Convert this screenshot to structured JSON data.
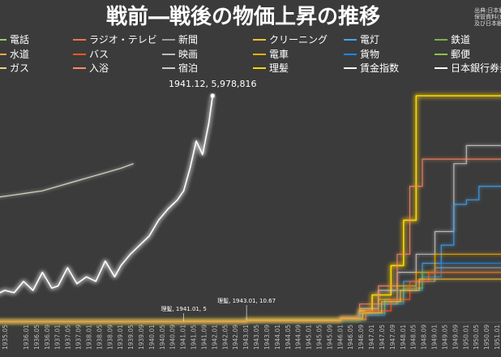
{
  "chart_data": {
    "type": "line",
    "title": "戦前―戦後の物価上昇の推移",
    "source": [
      "出典:日本銀",
      "保管資料(東",
      "及び日本銀"
    ],
    "legend": [
      {
        "name": "電話",
        "color": "#9ccc65"
      },
      {
        "name": "ラジオ・テレビ",
        "color": "#ff7043"
      },
      {
        "name": "新聞",
        "color": "#9e9e9e"
      },
      {
        "name": "クリーニング",
        "color": "#fbc02d"
      },
      {
        "name": "電灯",
        "color": "#42a5f5"
      },
      {
        "name": "鉄道",
        "color": "#7cb342"
      },
      {
        "name": "水道",
        "color": "#ffab40"
      },
      {
        "name": "バス",
        "color": "#ff5722"
      },
      {
        "name": "映画",
        "color": "#bdbdbd"
      },
      {
        "name": "電車",
        "color": "#ffb300"
      },
      {
        "name": "貨物",
        "color": "#1e88e5"
      },
      {
        "name": "郵便",
        "color": "#8bc34a"
      },
      {
        "name": "ガス",
        "color": "#ffcc80"
      },
      {
        "name": "入浴",
        "color": "#ff8a65"
      },
      {
        "name": "宿泊",
        "color": "#cccccc"
      },
      {
        "name": "理髪",
        "color": "#ffd600"
      },
      {
        "name": "賃金指数",
        "color": "#f5f5f5"
      },
      {
        "name": "日本銀行券発",
        "color": "#ffffff"
      }
    ],
    "x_ticks": [
      "1935.05",
      "1936.01",
      "1936.05",
      "1936.09",
      "1937.01",
      "1937.05",
      "1937.09",
      "1938.01",
      "1938.05",
      "1938.09",
      "1939.01",
      "1939.05",
      "1939.09",
      "1940.01",
      "1940.05",
      "1940.09",
      "1941.01",
      "1941.05",
      "1941.09",
      "1942.01",
      "1942.05",
      "1942.09",
      "1943.01",
      "1943.05",
      "1943.09",
      "1944.01",
      "1944.05",
      "1944.09",
      "1945.01",
      "1945.05",
      "1945.09",
      "1946.01",
      "1946.05",
      "1946.09",
      "1947.01",
      "1947.05",
      "1947.09",
      "1948.01",
      "1948.05",
      "1948.09",
      "1949.01",
      "1949.05",
      "1949.09",
      "1950.01",
      "1950.05",
      "1950.09",
      "1951.01"
    ],
    "annotations": [
      {
        "text": "1941.12, 5,978,816",
        "x": 1941.92
      },
      {
        "text": "理髪, 1941.01, 5",
        "x": 1941.0
      },
      {
        "text": "理髪, 1943.01, 10.67",
        "x": 1943.0
      }
    ],
    "series": [
      {
        "name": "賃金指数",
        "color": "#eef5e0",
        "x": [
          1935.0,
          1935.5,
          1936.0,
          1936.5,
          1937.0,
          1937.5,
          1938.0,
          1938.5,
          1939.0,
          1939.4
        ],
        "y": [
          55,
          56,
          57,
          58,
          60,
          62,
          64,
          66,
          68,
          70
        ]
      },
      {
        "name": "日本銀行券発",
        "color": "#ffffff",
        "x": [
          1935.0,
          1935.3,
          1935.6,
          1935.9,
          1936.2,
          1936.5,
          1936.8,
          1937.0,
          1937.3,
          1937.6,
          1937.9,
          1938.2,
          1938.5,
          1938.8,
          1939.0,
          1939.3,
          1939.6,
          1939.9,
          1940.2,
          1940.5,
          1940.8,
          1941.0,
          1941.2,
          1941.4,
          1941.6,
          1941.8,
          1941.92
        ],
        "y": [
          12,
          14,
          13,
          18,
          14,
          22,
          15,
          16,
          24,
          17,
          20,
          18,
          27,
          20,
          25,
          30,
          34,
          38,
          45,
          50,
          54,
          58,
          68,
          80,
          74,
          88,
          100
        ]
      },
      {
        "name": "理髪",
        "color": "#ffd600",
        "x": [
          1935.0,
          1941.0,
          1943.0,
          1946.0,
          1946.6,
          1947.0,
          1947.6,
          1948.0,
          1948.4,
          1949.0,
          1950.0,
          1951.5
        ],
        "y": [
          0.2,
          0.5,
          1.0,
          1.5,
          5,
          12,
          25,
          45,
          100,
          100,
          100,
          100
        ]
      },
      {
        "name": "宿泊",
        "color": "#cccccc",
        "x": [
          1935.0,
          1943.0,
          1946.0,
          1946.6,
          1947.2,
          1947.8,
          1948.4,
          1949.0,
          1949.6,
          1950.0,
          1951.5
        ],
        "y": [
          0.3,
          0.8,
          2,
          6,
          14,
          22,
          30,
          40,
          70,
          78,
          78
        ]
      },
      {
        "name": "入浴",
        "color": "#ff8a65",
        "x": [
          1935.0,
          1943.0,
          1946.0,
          1946.6,
          1947.2,
          1947.8,
          1948.2,
          1948.6,
          1949.0,
          1951.5
        ],
        "y": [
          0.3,
          0.8,
          2,
          8,
          16,
          30,
          60,
          72,
          72,
          72
        ]
      },
      {
        "name": "電灯",
        "color": "#42a5f5",
        "x": [
          1935.0,
          1943.0,
          1946.0,
          1946.8,
          1947.4,
          1948.0,
          1948.6,
          1949.2,
          1949.6,
          1950.0,
          1950.4,
          1951.5
        ],
        "y": [
          0.2,
          0.6,
          1,
          4,
          10,
          18,
          26,
          34,
          52,
          54,
          60,
          60
        ]
      },
      {
        "name": "電車",
        "color": "#ffb300",
        "x": [
          1935.0,
          1943.0,
          1946.0,
          1946.6,
          1947.2,
          1947.8,
          1948.4,
          1949.0,
          1951.5
        ],
        "y": [
          0.3,
          0.7,
          1.5,
          5,
          10,
          16,
          22,
          30,
          30
        ]
      },
      {
        "name": "貨物",
        "color": "#1e88e5",
        "x": [
          1935.0,
          1943.0,
          1946.0,
          1946.6,
          1947.4,
          1948.0,
          1948.6,
          1949.2,
          1951.5
        ],
        "y": [
          0.2,
          0.6,
          1,
          3,
          8,
          14,
          20,
          26,
          26
        ]
      },
      {
        "name": "鉄道",
        "color": "#7cb342",
        "x": [
          1935.0,
          1943.0,
          1946.0,
          1946.8,
          1947.4,
          1948.0,
          1948.6,
          1951.5
        ],
        "y": [
          0.3,
          0.6,
          1,
          4,
          9,
          15,
          22,
          22
        ]
      },
      {
        "name": "新聞",
        "color": "#9e9e9e",
        "x": [
          1935.0,
          1943.0,
          1946.0,
          1946.6,
          1947.2,
          1947.8,
          1948.4,
          1949.0,
          1951.5
        ],
        "y": [
          0.3,
          0.7,
          1.5,
          4,
          8,
          14,
          18,
          24,
          24
        ]
      },
      {
        "name": "バス",
        "color": "#ff5722",
        "x": [
          1935.0,
          1943.0,
          1946.0,
          1946.8,
          1947.6,
          1948.2,
          1948.8,
          1951.5
        ],
        "y": [
          0.3,
          0.7,
          1.5,
          5,
          10,
          18,
          22,
          22
        ]
      },
      {
        "name": "クリーニング",
        "color": "#fbc02d",
        "x": [
          1935.0,
          1943.0,
          1946.0,
          1946.7,
          1947.3,
          1947.9,
          1948.5,
          1951.5
        ],
        "y": [
          0.3,
          0.7,
          1.5,
          4,
          9,
          14,
          19,
          19
        ]
      }
    ]
  }
}
